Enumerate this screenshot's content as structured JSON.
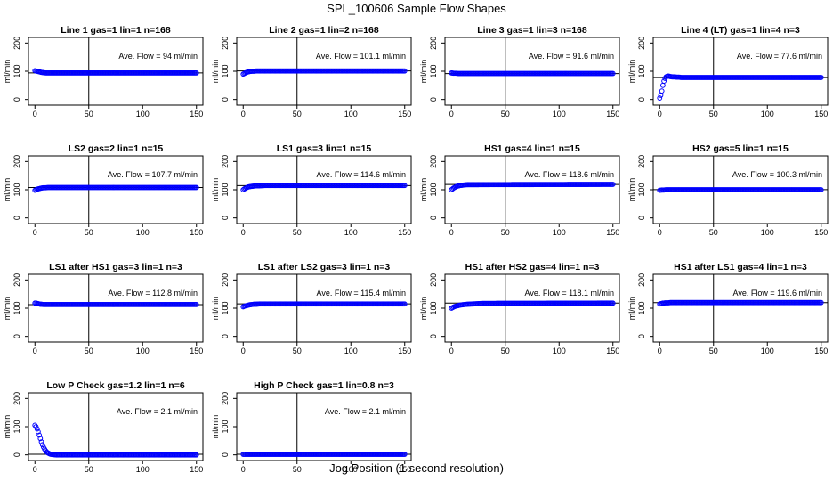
{
  "figure": {
    "title": "SPL_100606  Sample Flow Shapes",
    "xlabel": "Jog Position (1 second resolution)",
    "ylabel": "ml/min"
  },
  "chart_data": [
    {
      "type": "scatter",
      "title": "Line 1 gas=1 lin=1 n=168",
      "xlim": [
        0,
        150
      ],
      "ylim": [
        0,
        200
      ],
      "xticks": [
        0,
        50,
        100,
        150
      ],
      "yticks": [
        0,
        100,
        200
      ],
      "vline": 50,
      "hline": 94,
      "annotation": "Ave. Flow = 94  ml/min",
      "color": "#0000ff",
      "series": [
        {
          "name": "flow",
          "x": [
            0,
            1,
            2,
            3,
            4,
            5,
            6,
            8,
            10,
            12,
            15,
            20,
            150
          ],
          "y": [
            102,
            101,
            100,
            99,
            98,
            97,
            96,
            95,
            94,
            94,
            94,
            94,
            94
          ]
        }
      ]
    },
    {
      "type": "scatter",
      "title": "Line 2 gas=1 lin=2 n=168",
      "xlim": [
        0,
        150
      ],
      "ylim": [
        0,
        200
      ],
      "xticks": [
        0,
        50,
        100,
        150
      ],
      "yticks": [
        0,
        100,
        200
      ],
      "vline": 50,
      "hline": 101.1,
      "annotation": "Ave. Flow = 101.1  ml/min",
      "color": "#0000ff",
      "series": [
        {
          "name": "flow",
          "x": [
            0,
            1,
            2,
            3,
            4,
            5,
            6,
            8,
            10,
            12,
            15,
            20,
            150
          ],
          "y": [
            90,
            92,
            94,
            96,
            97,
            98,
            99,
            100,
            100,
            101,
            101,
            101,
            101
          ]
        }
      ]
    },
    {
      "type": "scatter",
      "title": "Line 3 gas=1 lin=3 n=168",
      "xlim": [
        0,
        150
      ],
      "ylim": [
        0,
        200
      ],
      "xticks": [
        0,
        50,
        100,
        150
      ],
      "yticks": [
        0,
        100,
        200
      ],
      "vline": 50,
      "hline": 91.6,
      "annotation": "Ave. Flow = 91.6  ml/min",
      "color": "#0000ff",
      "series": [
        {
          "name": "flow",
          "x": [
            0,
            2,
            4,
            6,
            8,
            10,
            15,
            20,
            150
          ],
          "y": [
            94,
            93,
            93,
            92,
            92,
            92,
            92,
            92,
            92
          ]
        }
      ]
    },
    {
      "type": "scatter",
      "title": "Line 4 (LT) gas=1 lin=4 n=3",
      "xlim": [
        0,
        150
      ],
      "ylim": [
        0,
        200
      ],
      "xticks": [
        0,
        50,
        100,
        150
      ],
      "yticks": [
        0,
        100,
        200
      ],
      "vline": 50,
      "hline": 77.6,
      "annotation": "Ave. Flow = 77.6  ml/min",
      "color": "#0000ff",
      "series": [
        {
          "name": "flow",
          "x": [
            0,
            1,
            2,
            3,
            4,
            5,
            6,
            7,
            8,
            9,
            10,
            12,
            14,
            16,
            18,
            20,
            150
          ],
          "y": [
            5,
            15,
            30,
            50,
            65,
            75,
            80,
            82,
            83,
            82,
            81,
            80,
            80,
            79,
            79,
            78,
            78
          ]
        }
      ]
    },
    {
      "type": "scatter",
      "title": "LS2 gas=2 lin=1 n=15",
      "xlim": [
        0,
        150
      ],
      "ylim": [
        0,
        200
      ],
      "xticks": [
        0,
        50,
        100,
        150
      ],
      "yticks": [
        0,
        100,
        200
      ],
      "vline": 50,
      "hline": 107.7,
      "annotation": "Ave. Flow = 107.7  ml/min",
      "color": "#0000ff",
      "series": [
        {
          "name": "flow",
          "x": [
            0,
            1,
            2,
            3,
            4,
            5,
            6,
            8,
            10,
            12,
            15,
            20,
            150
          ],
          "y": [
            98,
            100,
            102,
            103,
            104,
            105,
            106,
            107,
            107,
            108,
            108,
            108,
            108
          ]
        }
      ]
    },
    {
      "type": "scatter",
      "title": "LS1 gas=3 lin=1 n=15",
      "xlim": [
        0,
        150
      ],
      "ylim": [
        0,
        200
      ],
      "xticks": [
        0,
        50,
        100,
        150
      ],
      "yticks": [
        0,
        100,
        200
      ],
      "vline": 50,
      "hline": 114.6,
      "annotation": "Ave. Flow = 114.6  ml/min",
      "color": "#0000ff",
      "series": [
        {
          "name": "flow",
          "x": [
            0,
            1,
            2,
            3,
            4,
            5,
            6,
            8,
            10,
            12,
            15,
            20,
            150
          ],
          "y": [
            100,
            103,
            105,
            107,
            109,
            110,
            111,
            112,
            113,
            114,
            114,
            115,
            115
          ]
        }
      ]
    },
    {
      "type": "scatter",
      "title": "HS1 gas=4 lin=1 n=15",
      "xlim": [
        0,
        150
      ],
      "ylim": [
        0,
        200
      ],
      "xticks": [
        0,
        50,
        100,
        150
      ],
      "yticks": [
        0,
        100,
        200
      ],
      "vline": 50,
      "hline": 118.6,
      "annotation": "Ave. Flow = 118.6  ml/min",
      "color": "#0000ff",
      "series": [
        {
          "name": "flow",
          "x": [
            0,
            1,
            2,
            3,
            4,
            5,
            6,
            8,
            10,
            12,
            15,
            20,
            150
          ],
          "y": [
            100,
            103,
            106,
            108,
            110,
            112,
            113,
            115,
            116,
            117,
            118,
            118,
            119
          ]
        }
      ]
    },
    {
      "type": "scatter",
      "title": "HS2 gas=5 lin=1 n=15",
      "xlim": [
        0,
        150
      ],
      "ylim": [
        0,
        200
      ],
      "xticks": [
        0,
        50,
        100,
        150
      ],
      "yticks": [
        0,
        100,
        200
      ],
      "vline": 50,
      "hline": 100.3,
      "annotation": "Ave. Flow = 100.3  ml/min",
      "color": "#0000ff",
      "series": [
        {
          "name": "flow",
          "x": [
            0,
            2,
            4,
            6,
            8,
            10,
            15,
            20,
            150
          ],
          "y": [
            98,
            99,
            99,
            100,
            100,
            100,
            100,
            100,
            100
          ]
        }
      ]
    },
    {
      "type": "scatter",
      "title": "LS1 after HS1 gas=3 lin=1 n=3",
      "xlim": [
        0,
        150
      ],
      "ylim": [
        0,
        200
      ],
      "xticks": [
        0,
        50,
        100,
        150
      ],
      "yticks": [
        0,
        100,
        200
      ],
      "vline": 50,
      "hline": 112.8,
      "annotation": "Ave. Flow = 112.8  ml/min",
      "color": "#0000ff",
      "series": [
        {
          "name": "flow",
          "x": [
            0,
            1,
            2,
            3,
            4,
            5,
            6,
            8,
            10,
            12,
            15,
            20,
            150
          ],
          "y": [
            118,
            118,
            117,
            116,
            115,
            114,
            114,
            113,
            113,
            113,
            113,
            113,
            113
          ]
        }
      ]
    },
    {
      "type": "scatter",
      "title": "LS1 after LS2 gas=3 lin=1 n=3",
      "xlim": [
        0,
        150
      ],
      "ylim": [
        0,
        200
      ],
      "xticks": [
        0,
        50,
        100,
        150
      ],
      "yticks": [
        0,
        100,
        200
      ],
      "vline": 50,
      "hline": 115.4,
      "annotation": "Ave. Flow = 115.4  ml/min",
      "color": "#0000ff",
      "series": [
        {
          "name": "flow",
          "x": [
            0,
            1,
            2,
            3,
            4,
            5,
            6,
            8,
            10,
            12,
            15,
            20,
            150
          ],
          "y": [
            105,
            107,
            108,
            109,
            110,
            111,
            112,
            113,
            114,
            114,
            115,
            115,
            115
          ]
        }
      ]
    },
    {
      "type": "scatter",
      "title": "HS1 after HS2 gas=4 lin=1 n=3",
      "xlim": [
        0,
        150
      ],
      "ylim": [
        0,
        200
      ],
      "xticks": [
        0,
        50,
        100,
        150
      ],
      "yticks": [
        0,
        100,
        200
      ],
      "vline": 50,
      "hline": 118.1,
      "annotation": "Ave. Flow = 118.1  ml/min",
      "color": "#0000ff",
      "series": [
        {
          "name": "flow",
          "x": [
            0,
            1,
            2,
            3,
            4,
            5,
            6,
            8,
            10,
            12,
            15,
            20,
            25,
            30,
            150
          ],
          "y": [
            100,
            102,
            104,
            106,
            107,
            108,
            109,
            111,
            112,
            113,
            114,
            115,
            116,
            117,
            118
          ]
        }
      ]
    },
    {
      "type": "scatter",
      "title": "HS1 after LS1 gas=4 lin=1 n=3",
      "xlim": [
        0,
        150
      ],
      "ylim": [
        0,
        200
      ],
      "xticks": [
        0,
        50,
        100,
        150
      ],
      "yticks": [
        0,
        100,
        200
      ],
      "vline": 50,
      "hline": 119.6,
      "annotation": "Ave. Flow = 119.6  ml/min",
      "color": "#0000ff",
      "series": [
        {
          "name": "flow",
          "x": [
            0,
            1,
            2,
            3,
            4,
            5,
            6,
            8,
            10,
            12,
            15,
            20,
            150
          ],
          "y": [
            115,
            116,
            117,
            118,
            118,
            119,
            119,
            119,
            120,
            120,
            120,
            120,
            120
          ]
        }
      ]
    },
    {
      "type": "scatter",
      "title": "Low P Check gas=1.2 lin=1 n=6",
      "xlim": [
        0,
        150
      ],
      "ylim": [
        0,
        200
      ],
      "xticks": [
        0,
        50,
        100,
        150
      ],
      "yticks": [
        0,
        100,
        200
      ],
      "vline": 50,
      "hline": 2.1,
      "annotation": "Ave. Flow = 2.1  ml/min",
      "color": "#0000ff",
      "series": [
        {
          "name": "flow",
          "x": [
            0,
            1,
            2,
            3,
            4,
            5,
            6,
            7,
            8,
            9,
            10,
            11,
            12,
            13,
            14,
            15,
            17,
            20,
            150
          ],
          "y": [
            105,
            100,
            92,
            82,
            70,
            58,
            46,
            36,
            27,
            20,
            14,
            10,
            7,
            5,
            3,
            2,
            1,
            0,
            0
          ]
        }
      ]
    },
    {
      "type": "scatter",
      "title": "High P Check gas=1 lin=0.8 n=3",
      "xlim": [
        0,
        150
      ],
      "ylim": [
        0,
        200
      ],
      "xticks": [
        0,
        50,
        100,
        150
      ],
      "yticks": [
        0,
        100,
        200
      ],
      "vline": 50,
      "hline": 2.1,
      "annotation": "Ave. Flow = 2.1  ml/min",
      "color": "#0000ff",
      "series": [
        {
          "name": "flow",
          "x": [
            0,
            5,
            10,
            20,
            150
          ],
          "y": [
            2,
            2,
            2,
            2,
            2
          ]
        }
      ]
    }
  ]
}
